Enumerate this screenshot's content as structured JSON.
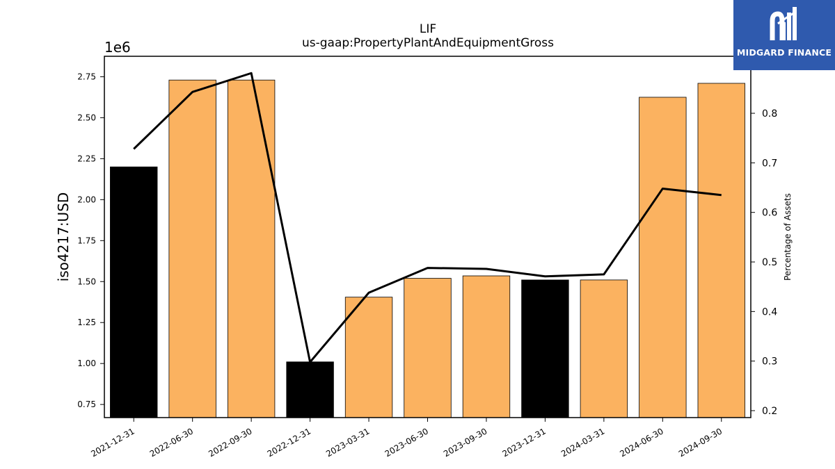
{
  "chart_data": {
    "type": "bar",
    "title": "LIF",
    "subtitle": "us-gaap:PropertyPlantAndEquipmentGross",
    "ylabel": "iso4217:USD",
    "y_offset_text": "1e6",
    "y2label": "Percentage of Assets",
    "categories": [
      "2021-12-31",
      "2022-06-30",
      "2022-09-30",
      "2022-12-31",
      "2023-03-31",
      "2023-06-30",
      "2023-09-30",
      "2023-12-31",
      "2024-03-31",
      "2024-06-30",
      "2024-09-30"
    ],
    "series": [
      {
        "type": "bar",
        "values": [
          2.2,
          2.73,
          2.73,
          1.01,
          1.405,
          1.52,
          1.535,
          1.51,
          1.51,
          2.625,
          2.71
        ],
        "colors": [
          "#000000",
          "#fbb260",
          "#fbb260",
          "#000000",
          "#fbb260",
          "#fbb260",
          "#fbb260",
          "#000000",
          "#fbb260",
          "#fbb260",
          "#fbb260"
        ]
      },
      {
        "type": "line",
        "axis": "right",
        "values": [
          0.728,
          0.843,
          0.881,
          0.298,
          0.438,
          0.488,
          0.486,
          0.471,
          0.475,
          0.648,
          0.635
        ],
        "color": "#000000"
      }
    ],
    "ylim": [
      0.67,
      2.875
    ],
    "yticks": [
      "0.75",
      "1.00",
      "1.25",
      "1.50",
      "1.75",
      "2.00",
      "2.25",
      "2.50",
      "2.75"
    ],
    "ytick_values": [
      0.75,
      1.0,
      1.25,
      1.5,
      1.75,
      2.0,
      2.25,
      2.5,
      2.75
    ],
    "y2lim": [
      0.186,
      0.915
    ],
    "y2ticks": [
      "0.2",
      "0.3",
      "0.4",
      "0.5",
      "0.6",
      "0.7",
      "0.8"
    ],
    "y2tick_values": [
      0.2,
      0.3,
      0.4,
      0.5,
      0.6,
      0.7,
      0.8
    ],
    "grid": false
  },
  "logo": {
    "text": "MIDGARD FINANCE",
    "color": "#2f5aae"
  }
}
